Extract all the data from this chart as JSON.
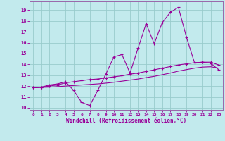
{
  "xlabel": "Windchill (Refroidissement éolien,°C)",
  "background_color": "#c2eaed",
  "grid_color": "#99cccc",
  "line_color": "#990099",
  "spine_color": "#9966aa",
  "xlim": [
    -0.5,
    23.5
  ],
  "ylim": [
    9.8,
    19.8
  ],
  "yticks": [
    10,
    11,
    12,
    13,
    14,
    15,
    16,
    17,
    18,
    19
  ],
  "xticks": [
    0,
    1,
    2,
    3,
    4,
    5,
    6,
    7,
    8,
    9,
    10,
    11,
    12,
    13,
    14,
    15,
    16,
    17,
    18,
    19,
    20,
    21,
    22,
    23
  ],
  "s1_x": [
    0,
    1,
    2,
    3,
    4,
    5,
    6,
    7,
    8,
    9,
    10,
    11,
    12,
    13,
    14,
    15,
    16,
    17,
    18,
    19,
    20,
    21,
    22,
    23
  ],
  "s1_y": [
    11.85,
    11.9,
    12.1,
    12.2,
    12.4,
    11.6,
    10.5,
    10.2,
    11.6,
    13.1,
    14.7,
    14.9,
    13.2,
    15.5,
    17.75,
    15.9,
    17.85,
    18.8,
    19.25,
    16.5,
    14.15,
    14.2,
    14.1,
    13.5
  ],
  "s2_x": [
    0,
    1,
    2,
    3,
    4,
    5,
    6,
    7,
    8,
    9,
    10,
    11,
    12,
    13,
    14,
    15,
    16,
    17,
    18,
    19,
    20,
    21,
    22,
    23
  ],
  "s2_y": [
    11.85,
    11.9,
    12.0,
    12.1,
    12.3,
    12.4,
    12.5,
    12.6,
    12.65,
    12.75,
    12.85,
    12.95,
    13.1,
    13.2,
    13.35,
    13.5,
    13.65,
    13.8,
    13.95,
    14.05,
    14.15,
    14.2,
    14.2,
    13.95
  ],
  "s3_x": [
    0,
    1,
    2,
    3,
    4,
    5,
    6,
    7,
    8,
    9,
    10,
    11,
    12,
    13,
    14,
    15,
    16,
    17,
    18,
    19,
    20,
    21,
    22,
    23
  ],
  "s3_y": [
    11.85,
    11.88,
    11.9,
    11.95,
    12.0,
    12.05,
    12.1,
    12.15,
    12.2,
    12.27,
    12.35,
    12.45,
    12.55,
    12.65,
    12.78,
    12.9,
    13.05,
    13.2,
    13.38,
    13.52,
    13.65,
    13.75,
    13.78,
    13.65
  ]
}
